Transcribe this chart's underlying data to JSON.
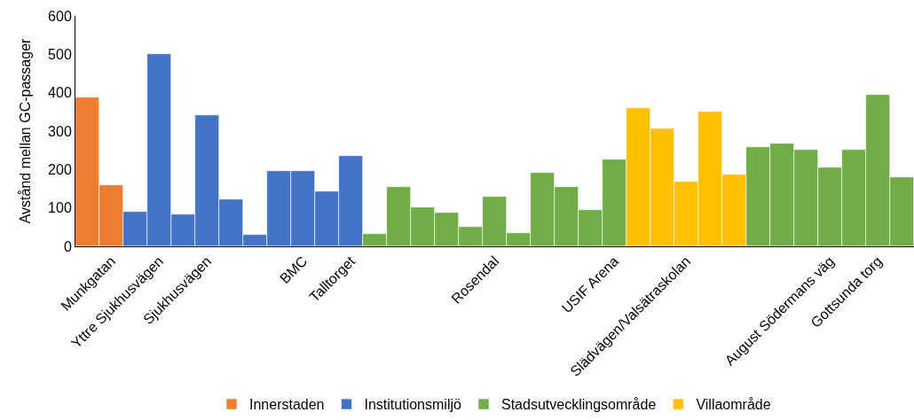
{
  "chart_data": {
    "type": "bar",
    "ylabel": "Avstånd mellan GC-passager",
    "ylim": [
      0,
      600
    ],
    "yticks": [
      0,
      100,
      200,
      300,
      400,
      500,
      600
    ],
    "legend": "bottom",
    "categories": [
      null,
      "Munkgatan",
      null,
      "Yttre Sjukhusvägen",
      null,
      "Sjukhusvägen",
      null,
      null,
      null,
      "BMC",
      null,
      "Talltorget",
      null,
      null,
      null,
      null,
      null,
      "Rosendal",
      null,
      null,
      null,
      null,
      "USIF Arena",
      null,
      null,
      "Slädvägen/Valsätraskolan",
      null,
      null,
      null,
      null,
      null,
      "August Södermans väg",
      null,
      "Gottsunda torg",
      null
    ],
    "series": [
      {
        "name": "Innerstaden",
        "color": "#ed7d31",
        "values": [
          388,
          160,
          null,
          null,
          null,
          null,
          null,
          null,
          null,
          null,
          null,
          null,
          null,
          null,
          null,
          null,
          null,
          null,
          null,
          null,
          null,
          null,
          null,
          null,
          null,
          null,
          null,
          null,
          null,
          null,
          null,
          null,
          null,
          null,
          null
        ]
      },
      {
        "name": "Institutionsmiljö",
        "color": "#4472c4",
        "values": [
          null,
          null,
          91,
          500,
          83,
          341,
          123,
          30,
          197,
          197,
          144,
          235,
          null,
          null,
          null,
          null,
          null,
          null,
          null,
          null,
          null,
          null,
          null,
          null,
          null,
          null,
          null,
          null,
          null,
          null,
          null,
          null,
          null,
          null,
          null
        ]
      },
      {
        "name": "Stadsutvecklingsområde",
        "color": "#70ad47",
        "values": [
          null,
          null,
          null,
          null,
          null,
          null,
          null,
          null,
          null,
          null,
          null,
          null,
          33,
          154,
          102,
          87,
          50,
          130,
          35,
          192,
          154,
          95,
          226,
          null,
          null,
          null,
          null,
          null,
          259,
          267,
          252,
          206,
          252,
          395,
          179
        ]
      },
      {
        "name": "Villaområde",
        "color": "#ffc000",
        "values": [
          null,
          null,
          null,
          null,
          null,
          null,
          null,
          null,
          null,
          null,
          null,
          null,
          null,
          null,
          null,
          null,
          null,
          null,
          null,
          null,
          null,
          null,
          null,
          360,
          307,
          169,
          350,
          188,
          null,
          null,
          null,
          null,
          null,
          null,
          null
        ]
      }
    ]
  }
}
